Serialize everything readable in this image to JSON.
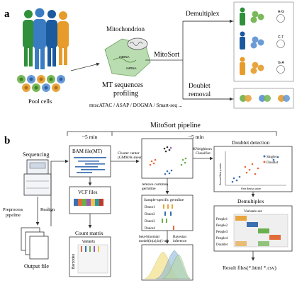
{
  "panel_a": {
    "label": "a",
    "pool_cells": "Pool cells",
    "mitochondrion": "Mitochondrion",
    "mitosort": "MitoSort",
    "mt_profiling_line1": "MT sequences",
    "mt_profiling_line2": "profiling",
    "methods": "mtscATAC / ASAP / DOGMA / Smart-seq ...",
    "mtdna": "mtDNA",
    "mtrna": "mtRNA",
    "demultiplex": "Demultiplex",
    "doublet_line1": "Doublet",
    "doublet_line2": "removal",
    "alleles": [
      "A-G",
      "C-T",
      "G-A"
    ],
    "colors": {
      "green": "#3f9e45",
      "blue": "#3f7fc4",
      "orange": "#e39a2b",
      "teal": "#1f8a8a"
    }
  },
  "panel_b": {
    "label": "b",
    "pipeline_title": "MitoSort pipeline",
    "time1": "~5 min",
    "time2": "~5 min",
    "sequencing": "Sequencing",
    "preprocess": "Preprocess\npipeline",
    "realign": "Realign",
    "output_file": "Output file",
    "bam_file": "BAM file(MT)",
    "vcf_files": "VCF files",
    "count_matrix": "Count matrix",
    "variants": "Variants",
    "barcodes": "Barcodes",
    "cluster_center": "Cluster center\n(GMM/K-mean)",
    "remove_germline": "remove common\ngermline",
    "sample_specific": "Sample-specific germline",
    "donors": [
      "Donor1",
      "Donor2",
      "Donor3",
      "Donor4"
    ],
    "beta_binomial": "beta-binomial\nmodel(ln(a),ln(1-a))",
    "bayesian": "Bayesian\ninference",
    "knn": "KNeighbors\nClassifier",
    "doublet_detection": "Doublet detection",
    "singlet": "Singlet",
    "doublet": "Doublet",
    "demultiplex_title": "Demultiplex",
    "variants_set": "Variants set",
    "people": [
      "People1",
      "People2",
      "People3",
      "People4",
      "Doublet"
    ],
    "result": "Result files(*.html *.csv)",
    "axis_y": "Second Best p-value",
    "axis_x": "First Best p-value"
  }
}
